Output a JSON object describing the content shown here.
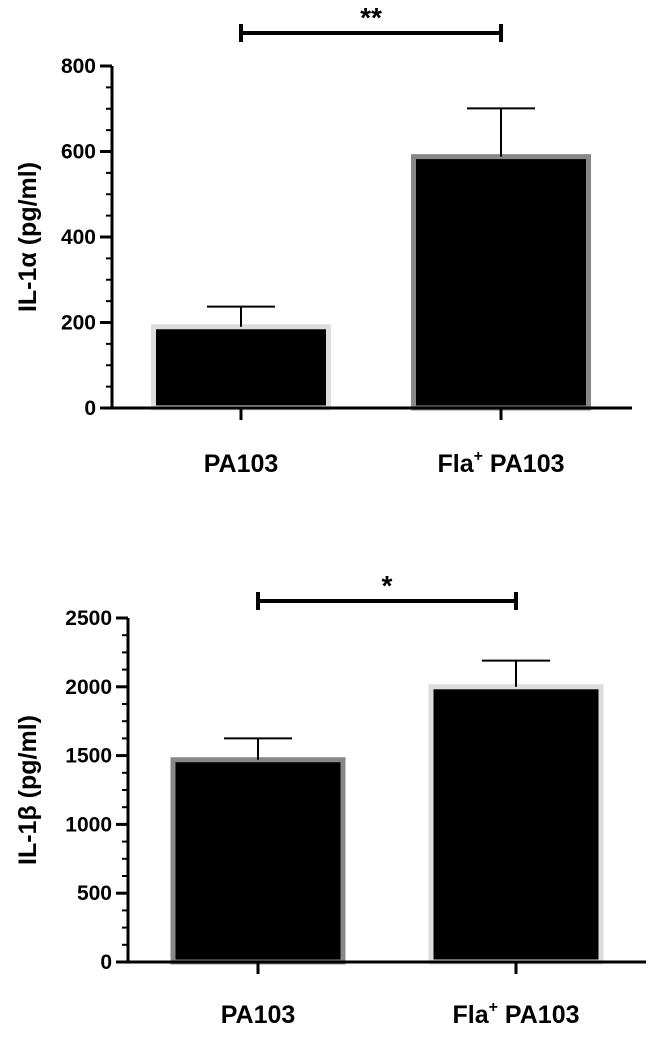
{
  "chart_data": [
    {
      "type": "bar",
      "categories": [
        "PA103",
        "Fla+ PA103"
      ],
      "category_labels": [
        {
          "main": "PA103",
          "sup": ""
        },
        {
          "main": "Fla",
          "sup": "+",
          "rest": " PA103"
        }
      ],
      "values": [
        190,
        588
      ],
      "errors": [
        47,
        113
      ],
      "ylabel": "IL-1α (pg/ml)",
      "ylim": [
        0,
        800
      ],
      "yticks": [
        0,
        200,
        400,
        600,
        800
      ],
      "significance": {
        "label": "**",
        "from": 0,
        "to": 1
      },
      "colors": {
        "bar": "#000000",
        "outline": [
          "#dddddd",
          "#888888"
        ]
      },
      "grid": false
    },
    {
      "type": "bar",
      "categories": [
        "PA103",
        "Fla+ PA103"
      ],
      "category_labels": [
        {
          "main": "PA103",
          "sup": ""
        },
        {
          "main": "Fla",
          "sup": "+",
          "rest": " PA103"
        }
      ],
      "values": [
        1470,
        2000
      ],
      "errors": [
        155,
        190
      ],
      "ylabel": "IL-1β (pg/ml)",
      "ylim": [
        0,
        2500
      ],
      "yticks": [
        0,
        500,
        1000,
        1500,
        2000,
        2500
      ],
      "significance": {
        "label": "*",
        "from": 0,
        "to": 1
      },
      "colors": {
        "bar": "#000000",
        "outline": [
          "#888888",
          "#dddddd"
        ]
      },
      "grid": false
    }
  ]
}
